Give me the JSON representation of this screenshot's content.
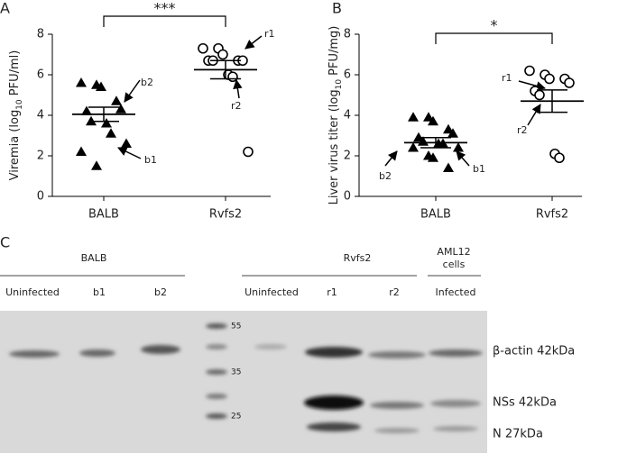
{
  "chart_data": [
    {
      "type": "dotplot",
      "panel_label": "A",
      "ylabel": [
        "Viremia (log",
        "10",
        " PFU/ml)"
      ],
      "categories": [
        "BALB",
        "Rvfs2"
      ],
      "markers": [
        "triangle",
        "circle"
      ],
      "points": [
        [
          5.6,
          5.5,
          5.4,
          4.7,
          4.3,
          4.2,
          3.7,
          3.6,
          3.1,
          2.6,
          2.2,
          1.5
        ],
        [
          7.3,
          7.3,
          7.0,
          6.7,
          6.7,
          6.7,
          6.7,
          6.0,
          5.9,
          2.2
        ]
      ],
      "means": [
        4.05,
        6.25
      ],
      "sems": [
        0.35,
        0.45
      ],
      "ylim": [
        0,
        8
      ],
      "yticks": [
        0,
        2,
        4,
        6,
        8
      ],
      "significance": "***",
      "annotations": [
        "b2",
        "b1",
        "r1",
        "r2"
      ]
    },
    {
      "type": "dotplot",
      "panel_label": "B",
      "ylabel": [
        "Liver virus titer (log",
        "10",
        " PFU/mg)"
      ],
      "categories": [
        "BALB",
        "Rvfs2"
      ],
      "markers": [
        "triangle",
        "circle"
      ],
      "points": [
        [
          3.9,
          3.9,
          3.7,
          3.3,
          3.1,
          2.9,
          2.7,
          2.6,
          2.6,
          2.4,
          2.4,
          2.0,
          1.9,
          1.4
        ],
        [
          6.2,
          6.0,
          5.8,
          5.8,
          5.6,
          5.2,
          5.0,
          2.1,
          1.9
        ]
      ],
      "means": [
        2.65,
        4.7
      ],
      "sems": [
        0.25,
        0.55
      ],
      "ylim": [
        0,
        8
      ],
      "yticks": [
        0,
        2,
        4,
        6,
        8
      ],
      "significance": "*",
      "annotations": [
        "r1",
        "r2",
        "b2",
        "b1"
      ]
    }
  ],
  "blot": {
    "panel_label": "C",
    "groups": [
      "BALB",
      "Rvfs2",
      "AML12",
      "cells"
    ],
    "lanes": [
      "Uninfected",
      "b1",
      "b2",
      "Uninfected",
      "r1",
      "r2",
      "Infected"
    ],
    "ladder": [
      "55",
      "35",
      "25"
    ],
    "bands": [
      "β-actin 42kDa",
      "NSs 42kDa",
      "N 27kDa"
    ]
  }
}
